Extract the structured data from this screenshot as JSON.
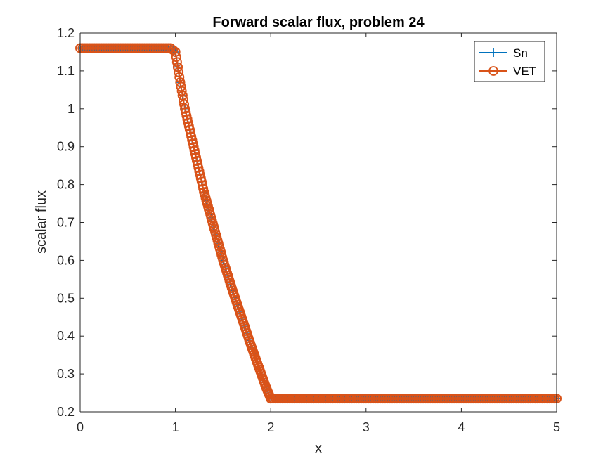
{
  "chart_data": {
    "type": "line",
    "title": "Forward scalar flux, problem 24",
    "xlabel": "x",
    "ylabel": "scalar flux",
    "xlim": [
      0,
      5
    ],
    "ylim": [
      0.2,
      1.2
    ],
    "xticks": [
      0,
      1,
      2,
      3,
      4,
      5
    ],
    "xtick_labels": [
      "0",
      "1",
      "2",
      "3",
      "4",
      "5"
    ],
    "yticks": [
      0.2,
      0.3,
      0.4,
      0.5,
      0.6,
      0.7,
      0.8,
      0.9,
      1.0,
      1.1,
      1.2
    ],
    "ytick_labels": [
      "0.2",
      "0.3",
      "0.4",
      "0.5",
      "0.6",
      "0.7",
      "0.8",
      "0.9",
      "1",
      "1.1",
      "1.2"
    ],
    "grid": false,
    "legend": {
      "placement": "top-right"
    },
    "series": [
      {
        "name": "Sn",
        "color": "#0072BD",
        "marker": "plus",
        "x": [
          0,
          0.5,
          0.95,
          1.0,
          1.05,
          1.1,
          1.2,
          1.3,
          1.4,
          1.5,
          1.6,
          1.7,
          1.8,
          1.9,
          1.95,
          2.0,
          2.5,
          3.0,
          3.5,
          4.0,
          4.5,
          5.0
        ],
        "y": [
          1.16,
          1.16,
          1.16,
          1.15,
          1.07,
          1.0,
          0.89,
          0.78,
          0.69,
          0.6,
          0.52,
          0.445,
          0.37,
          0.3,
          0.265,
          0.235,
          0.235,
          0.235,
          0.235,
          0.235,
          0.235,
          0.235
        ]
      },
      {
        "name": "VET",
        "color": "#D95319",
        "marker": "circle",
        "x": [
          0,
          0.5,
          0.95,
          1.0,
          1.05,
          1.1,
          1.2,
          1.3,
          1.4,
          1.5,
          1.6,
          1.7,
          1.8,
          1.9,
          1.95,
          2.0,
          2.5,
          3.0,
          3.5,
          4.0,
          4.5,
          5.0
        ],
        "y": [
          1.16,
          1.16,
          1.16,
          1.15,
          1.07,
          1.0,
          0.89,
          0.78,
          0.69,
          0.6,
          0.52,
          0.445,
          0.37,
          0.3,
          0.265,
          0.235,
          0.235,
          0.235,
          0.235,
          0.235,
          0.235,
          0.235
        ]
      }
    ]
  }
}
